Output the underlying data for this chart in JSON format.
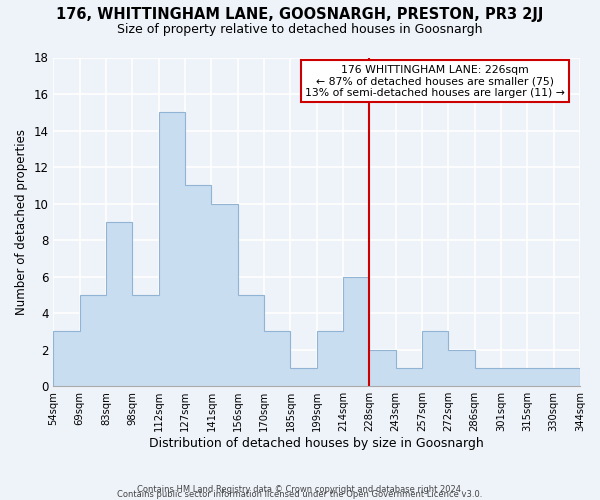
{
  "title": "176, WHITTINGHAM LANE, GOOSNARGH, PRESTON, PR3 2JJ",
  "subtitle": "Size of property relative to detached houses in Goosnargh",
  "xlabel": "Distribution of detached houses by size in Goosnargh",
  "ylabel": "Number of detached properties",
  "bin_edges_labels": [
    "54sqm",
    "69sqm",
    "83sqm",
    "98sqm",
    "112sqm",
    "127sqm",
    "141sqm",
    "156sqm",
    "170sqm",
    "185sqm",
    "199sqm",
    "214sqm",
    "228sqm",
    "243sqm",
    "257sqm",
    "272sqm",
    "286sqm",
    "301sqm",
    "315sqm",
    "330sqm",
    "344sqm"
  ],
  "bar_values": [
    3,
    5,
    9,
    5,
    15,
    11,
    10,
    5,
    3,
    1,
    3,
    6,
    2,
    1,
    3,
    2,
    1,
    1,
    1,
    1
  ],
  "bar_color": "#c9ddf0",
  "bar_edge_color": "#92b4d4",
  "vline_index": 12,
  "vline_color": "#cc0000",
  "annotation_title": "176 WHITTINGHAM LANE: 226sqm",
  "annotation_line1": "← 87% of detached houses are smaller (75)",
  "annotation_line2": "13% of semi-detached houses are larger (11) →",
  "annotation_box_color": "#ffffff",
  "annotation_box_edge": "#cc0000",
  "ylim": [
    0,
    18
  ],
  "yticks": [
    0,
    2,
    4,
    6,
    8,
    10,
    12,
    14,
    16,
    18
  ],
  "footer1": "Contains HM Land Registry data © Crown copyright and database right 2024.",
  "footer2": "Contains public sector information licensed under the Open Government Licence v3.0.",
  "background_color": "#eef2f9"
}
